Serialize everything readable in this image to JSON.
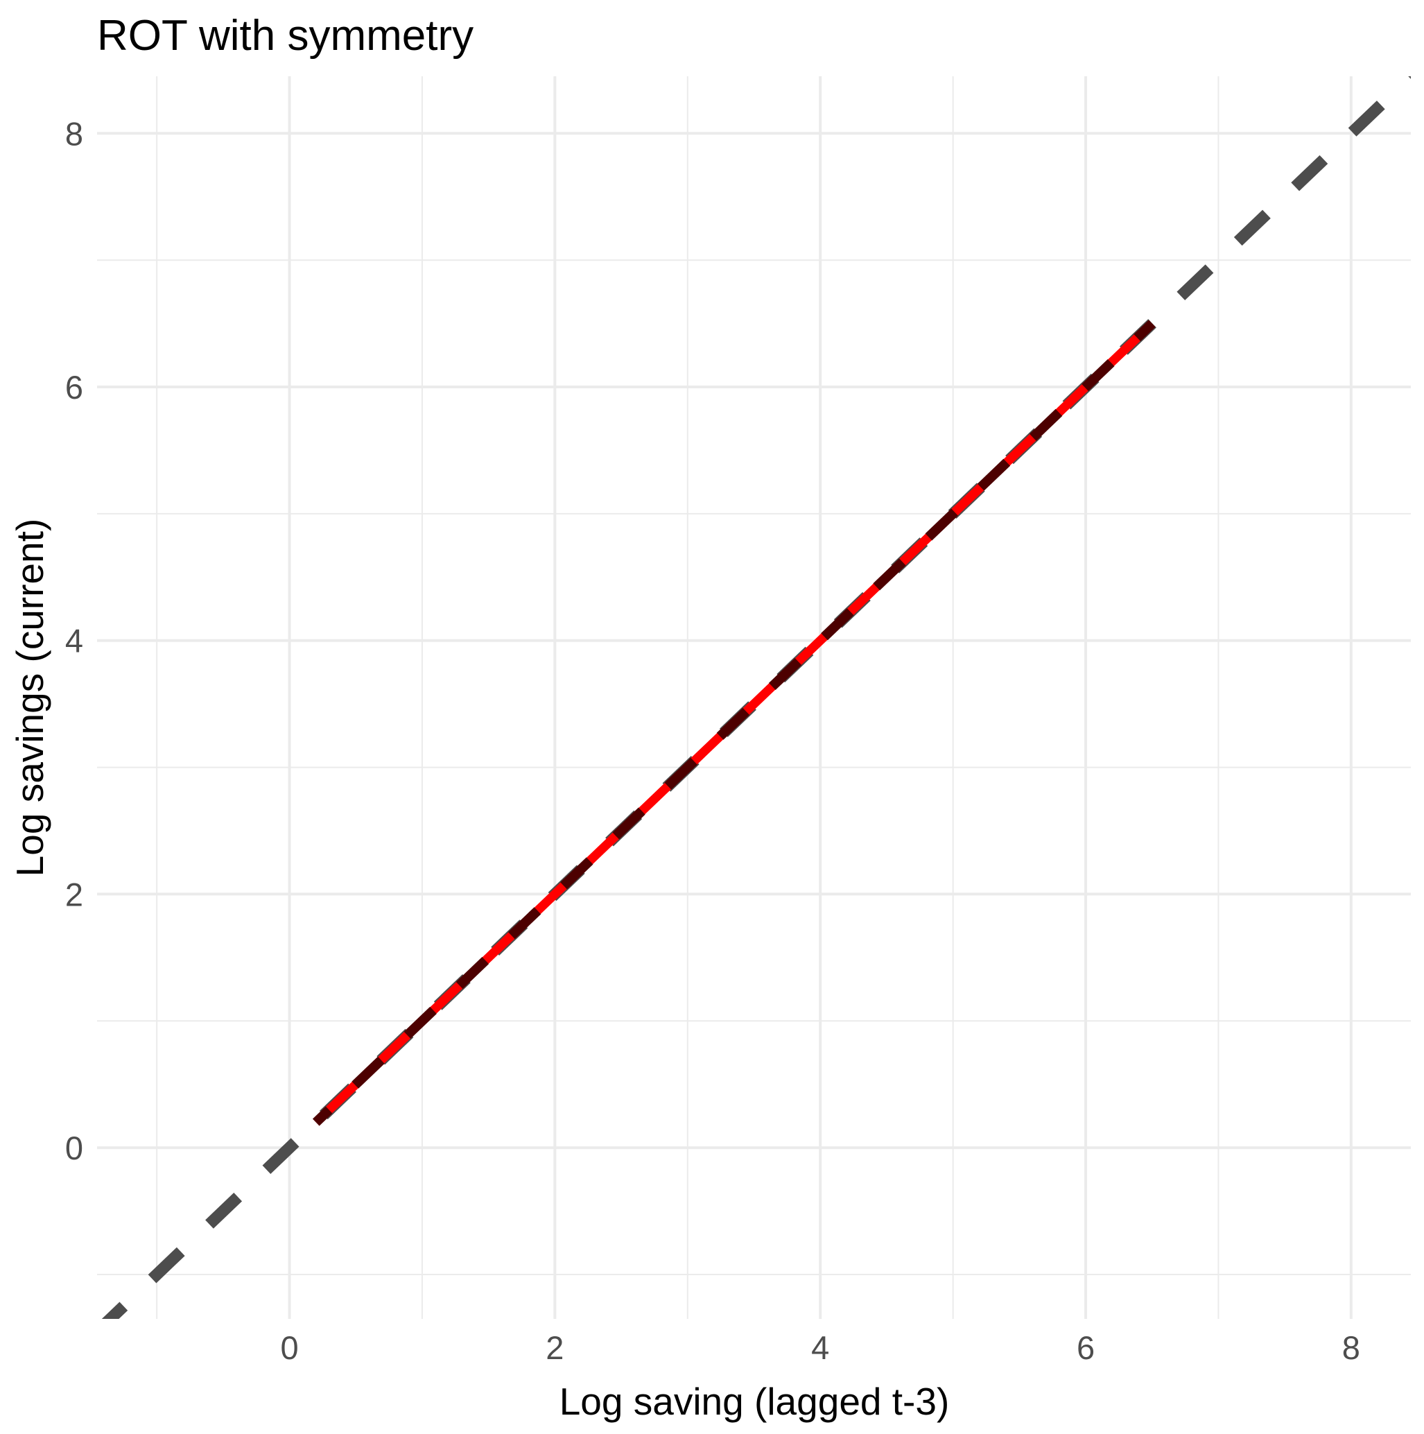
{
  "chart_data": {
    "type": "line",
    "title": "ROT with symmetry",
    "xlabel": "Log saving (lagged t-3)",
    "ylabel": "Log savings (current)",
    "xlim": [
      -1.45,
      8.45
    ],
    "ylim": [
      -1.35,
      8.45
    ],
    "x_ticks": [
      0,
      2,
      4,
      6,
      8
    ],
    "y_ticks": [
      0,
      2,
      4,
      6,
      8
    ],
    "x_tick_labels": [
      "0",
      "2",
      "4",
      "6",
      "8"
    ],
    "y_tick_labels": [
      "0",
      "2",
      "4",
      "6",
      "8"
    ],
    "grid": true,
    "legend": "none",
    "series": [
      {
        "style": "dashed",
        "color": "#4d4d4d",
        "x": [
          -1.45,
          8.45
        ],
        "y": [
          -1.45,
          8.45
        ]
      },
      {
        "style": "solid",
        "color": "#ff0000",
        "x": [
          0.2,
          6.5
        ],
        "y": [
          0.2,
          6.5
        ]
      },
      {
        "style": "dashed",
        "color": "#4d0000",
        "x": [
          0.2,
          6.5
        ],
        "y": [
          0.2,
          6.5
        ]
      }
    ]
  }
}
